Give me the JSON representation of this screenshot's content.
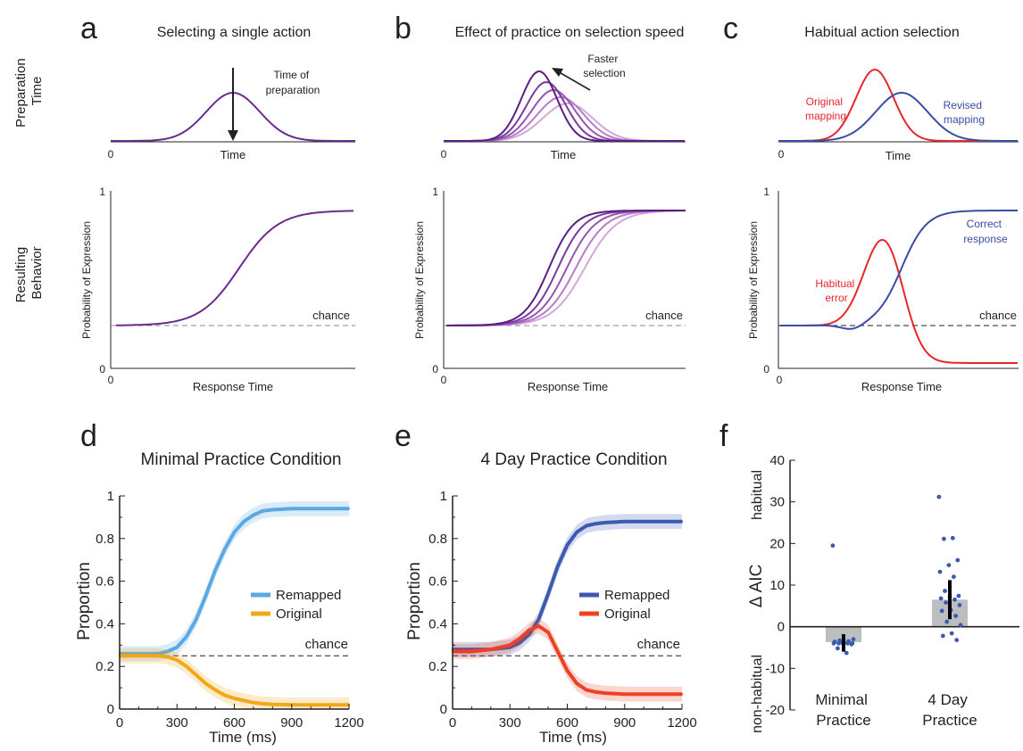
{
  "figure": {
    "row_labels": {
      "top": [
        "Preparation",
        "Time"
      ],
      "bottom": [
        "Resulting",
        "Behavior"
      ]
    },
    "colors": {
      "purple": "#6a2a8e",
      "purple_shades": [
        "#5b1f82",
        "#7a3b9c",
        "#9656b0",
        "#b57cc8",
        "#d2a7dc"
      ],
      "red": "#e8262d",
      "blue": "#3a4ca5",
      "light_blue": "#5aa9e3",
      "orange": "#f4a619",
      "dark_blue": "#3c5ab0",
      "red_orange": "#ee4124",
      "grey": "#888888"
    }
  },
  "panels": {
    "a": {
      "letter": "a",
      "title": "Selecting a single action",
      "top": {
        "x_label": "Time",
        "zero_label": "0",
        "annotation": [
          "Time of",
          "preparation"
        ]
      },
      "bottom": {
        "y_label": "Probability of Expression",
        "x_label": "Response Time",
        "y_top_tick": "1",
        "y_bottom_tick": "0",
        "x_zero": "0",
        "chance_label": "chance"
      }
    },
    "b": {
      "letter": "b",
      "title": "Effect of practice on selection speed",
      "top": {
        "x_label": "Time",
        "zero_label": "0",
        "annotation": [
          "Faster",
          "selection"
        ]
      },
      "bottom": {
        "y_label": "Probability of Expression",
        "x_label": "Response Time",
        "y_top_tick": "1",
        "y_bottom_tick": "0",
        "x_zero": "0",
        "chance_label": "chance"
      }
    },
    "c": {
      "letter": "c",
      "title": "Habitual action selection",
      "top": {
        "x_label": "Time",
        "zero_label": "0",
        "red_label": [
          "Original",
          "mapping"
        ],
        "blue_label": [
          "Revised",
          "mapping"
        ]
      },
      "bottom": {
        "y_label": "Probability of Expression",
        "x_label": "Response Time",
        "y_top_tick": "1",
        "y_bottom_tick": "0",
        "x_zero": "0",
        "chance_label": "chance",
        "red_label": [
          "Habitual",
          "error"
        ],
        "blue_label": [
          "Correct",
          "response"
        ]
      }
    },
    "d": {
      "letter": "d",
      "title": "Minimal Practice Condition",
      "chance_label": "chance",
      "legend": [
        "Remapped",
        "Original"
      ]
    },
    "e": {
      "letter": "e",
      "title": "4 Day Practice Condition",
      "chance_label": "chance",
      "legend": [
        "Remapped",
        "Original"
      ]
    },
    "f": {
      "letter": "f",
      "y_label": "Δ AIC",
      "upper_note": "habitual",
      "lower_note": "non-habitual",
      "categories": [
        [
          "Minimal",
          "Practice"
        ],
        [
          "4 Day",
          "Practice"
        ]
      ]
    }
  },
  "chart_data": [
    {
      "type": "line",
      "panel": "d",
      "xlabel": "Time (ms)",
      "ylabel": "Proportion",
      "xlim": [
        0,
        1200
      ],
      "ylim": [
        0,
        1
      ],
      "x_ticks": [
        0,
        300,
        600,
        900,
        1200
      ],
      "y_ticks": [
        0,
        0.2,
        0.4,
        0.6,
        0.8,
        1
      ],
      "y_tick_labels": [
        "0",
        "0.2",
        "0.4",
        "0.6",
        "0.8",
        "1"
      ],
      "chance": 0.25,
      "series": [
        {
          "name": "Remapped",
          "color": "#5aa9e3",
          "x": [
            0,
            100,
            200,
            250,
            300,
            350,
            400,
            450,
            500,
            550,
            600,
            650,
            700,
            750,
            800,
            900,
            1000,
            1100,
            1200
          ],
          "y": [
            0.26,
            0.26,
            0.26,
            0.27,
            0.29,
            0.34,
            0.42,
            0.53,
            0.65,
            0.75,
            0.83,
            0.88,
            0.91,
            0.93,
            0.935,
            0.94,
            0.94,
            0.94,
            0.94
          ]
        },
        {
          "name": "Original",
          "color": "#f4a619",
          "x": [
            0,
            100,
            200,
            250,
            300,
            350,
            400,
            450,
            500,
            550,
            600,
            650,
            700,
            750,
            800,
            900,
            1000,
            1100,
            1200
          ],
          "y": [
            0.25,
            0.25,
            0.25,
            0.245,
            0.23,
            0.2,
            0.16,
            0.12,
            0.09,
            0.065,
            0.05,
            0.04,
            0.03,
            0.025,
            0.022,
            0.02,
            0.02,
            0.02,
            0.02
          ]
        }
      ]
    },
    {
      "type": "line",
      "panel": "e",
      "xlabel": "Time (ms)",
      "ylabel": "Proportion",
      "xlim": [
        0,
        1200
      ],
      "ylim": [
        0,
        1
      ],
      "x_ticks": [
        0,
        300,
        600,
        900,
        1200
      ],
      "y_ticks": [
        0,
        0.2,
        0.4,
        0.6,
        0.8,
        1
      ],
      "y_tick_labels": [
        "0",
        "0.2",
        "0.4",
        "0.6",
        "0.8",
        "1"
      ],
      "chance": 0.25,
      "series": [
        {
          "name": "Remapped",
          "color": "#3c5ab0",
          "x": [
            0,
            100,
            200,
            300,
            350,
            400,
            450,
            500,
            550,
            600,
            650,
            700,
            750,
            800,
            900,
            1000,
            1100,
            1200
          ],
          "y": [
            0.28,
            0.28,
            0.28,
            0.29,
            0.31,
            0.35,
            0.42,
            0.54,
            0.67,
            0.77,
            0.83,
            0.86,
            0.87,
            0.875,
            0.88,
            0.88,
            0.88,
            0.88
          ]
        },
        {
          "name": "Original",
          "color": "#ee4124",
          "x": [
            0,
            100,
            200,
            300,
            350,
            400,
            450,
            500,
            550,
            600,
            650,
            700,
            750,
            800,
            900,
            1000,
            1100,
            1200
          ],
          "y": [
            0.27,
            0.27,
            0.28,
            0.3,
            0.33,
            0.37,
            0.39,
            0.36,
            0.27,
            0.18,
            0.12,
            0.09,
            0.08,
            0.075,
            0.07,
            0.07,
            0.07,
            0.07
          ]
        }
      ]
    },
    {
      "type": "bar",
      "panel": "f",
      "ylabel": "Δ AIC",
      "categories": [
        "Minimal Practice",
        "4 Day Practice"
      ],
      "ylim": [
        -20,
        40
      ],
      "y_ticks": [
        -20,
        -10,
        0,
        10,
        20,
        30,
        40
      ],
      "y_tick_labels": [
        "-20",
        "-10",
        "0",
        "10",
        "20",
        "30",
        "40"
      ],
      "values": [
        -3.7,
        6.5
      ],
      "error_bars": [
        [
          -6,
          -1.8
        ],
        [
          1.8,
          11.2
        ]
      ],
      "points": [
        [
          19.5,
          -6.3,
          -5.2,
          -4.2,
          -4,
          -4,
          -4,
          -4,
          -4,
          -3.8,
          -3.6,
          -3.5,
          -3.3,
          -3
        ],
        [
          31.2,
          21.3,
          21.1,
          16,
          14.8,
          13.2,
          12,
          8.6,
          7.4,
          7.2,
          6.8,
          6.5,
          5.8,
          5.2,
          4,
          3.8,
          2.6,
          1.2,
          0.4,
          -1.6,
          -2.2,
          -3.2
        ]
      ],
      "bar_color": "#bcbec0",
      "point_color": "#3c5ab0"
    }
  ]
}
